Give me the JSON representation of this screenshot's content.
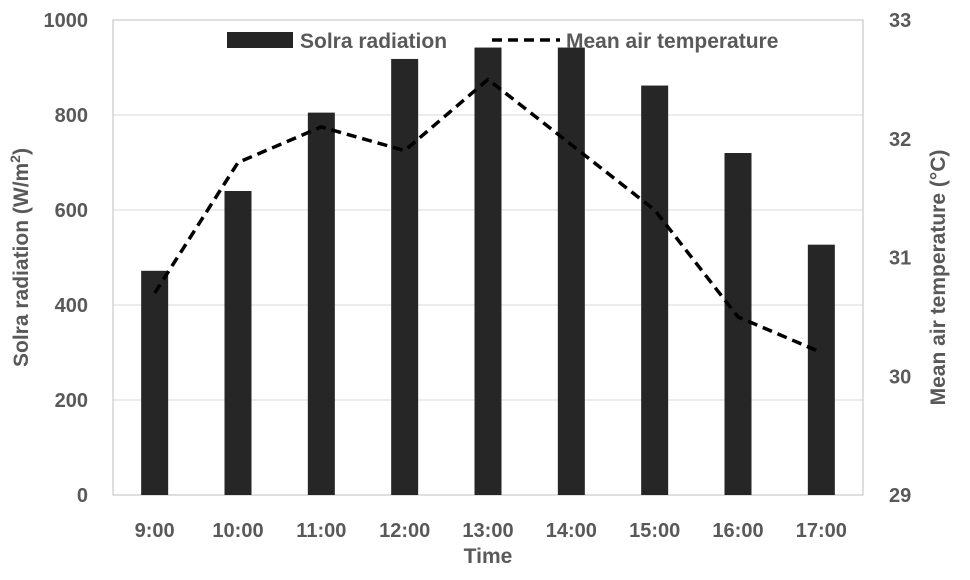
{
  "chart_data": {
    "type": "bar+line",
    "categories": [
      "9:00",
      "10:00",
      "11:00",
      "12:00",
      "13:00",
      "14:00",
      "15:00",
      "16:00",
      "17:00"
    ],
    "series": [
      {
        "name": "Solra radiation",
        "type": "bar",
        "axis": "left",
        "color": "#262626",
        "values": [
          472,
          640,
          805,
          918,
          942,
          942,
          862,
          720,
          527
        ]
      },
      {
        "name": "Mean air temperature",
        "type": "line",
        "style": "dashed",
        "axis": "right",
        "color": "#000000",
        "values": [
          30.7,
          31.8,
          32.1,
          31.9,
          32.5,
          31.95,
          31.4,
          30.5,
          30.2
        ]
      }
    ],
    "xlabel": "Time",
    "ylabel_left_main": "Solra radiation (W/m",
    "ylabel_left_sup": "2",
    "ylabel_left_end": ")",
    "ylabel_right": "Mean air temperature  (°C)",
    "ylim_left": [
      0,
      1000
    ],
    "yticks_left": [
      "0",
      "200",
      "400",
      "600",
      "800",
      "1000"
    ],
    "ylim_right": [
      29,
      33
    ],
    "yticks_right": [
      "29",
      "30",
      "31",
      "32",
      "33"
    ],
    "grid": true,
    "legend_position": "top"
  }
}
